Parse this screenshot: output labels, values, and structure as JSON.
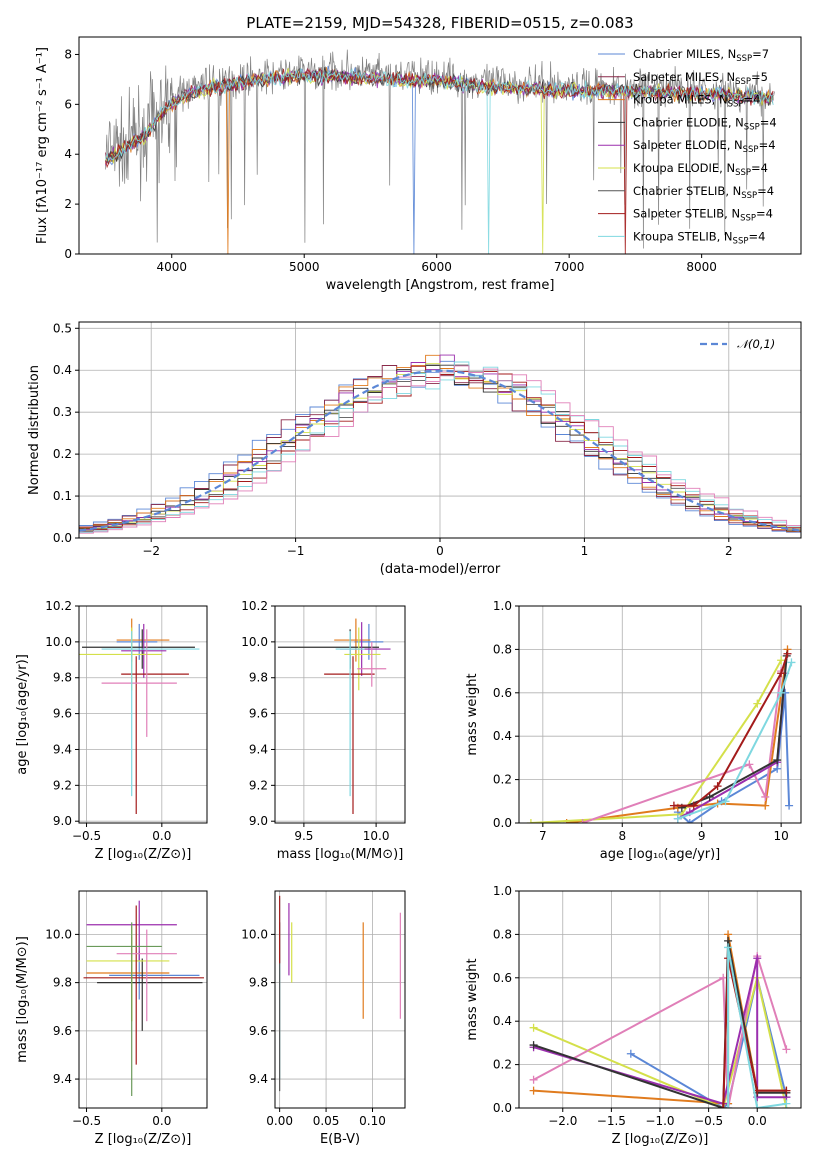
{
  "colors": {
    "Chabrier MILES": "#5b87d6",
    "Salpeter MILES": "#8a2a4a",
    "Kroupa MILES": "#e07b1e",
    "Chabrier ELODIE": "#333333",
    "Salpeter ELODIE": "#9b2fae",
    "Kroupa ELODIE": "#d4e04a",
    "Chabrier STELIB": "#555555",
    "Salpeter STELIB": "#a31b1b",
    "Kroupa STELIB": "#7fd8e0",
    "pink": "#e07fb8",
    "green": "#6a9a5a",
    "data": "#808080"
  },
  "chart_data": [
    {
      "type": "line",
      "title": "PLATE=2159, MJD=54328, FIBERID=0515, z=0.083",
      "xlabel": "wavelength [Angstrom, rest frame]",
      "ylabel": "Flux [fλ10⁻¹⁷ erg cm⁻² s⁻¹ A⁻¹]",
      "xlim": [
        3300,
        8750
      ],
      "ylim": [
        0,
        8.7
      ],
      "xticks": [
        4000,
        5000,
        6000,
        7000,
        8000
      ],
      "yticks": [
        0,
        2,
        4,
        6,
        8
      ],
      "legend_position": "right",
      "legend": [
        {
          "label": "Chabrier MILES, N",
          "sub": "SSP",
          "suffix": "=7"
        },
        {
          "label": "Salpeter MILES, N",
          "sub": "SSP",
          "suffix": "=5"
        },
        {
          "label": "Kroupa MILES, N",
          "sub": "SSP",
          "suffix": "=4"
        },
        {
          "label": "Chabrier ELODIE, N",
          "sub": "SSP",
          "suffix": "=4"
        },
        {
          "label": "Salpeter ELODIE, N",
          "sub": "SSP",
          "suffix": "=4"
        },
        {
          "label": "Kroupa ELODIE, N",
          "sub": "SSP",
          "suffix": "=4"
        },
        {
          "label": "Chabrier STELIB, N",
          "sub": "SSP",
          "suffix": "=4"
        },
        {
          "label": "Salpeter STELIB, N",
          "sub": "SSP",
          "suffix": "=4"
        },
        {
          "label": "Kroupa STELIB, N",
          "sub": "SSP",
          "suffix": "=4"
        }
      ],
      "continuum": {
        "x": [
          3500,
          3600,
          3700,
          3800,
          3900,
          4000,
          4100,
          4200,
          4400,
          4600,
          4800,
          5000,
          5200,
          5500,
          5800,
          6000,
          6300,
          6600,
          7000,
          7400,
          7800,
          8200,
          8500
        ],
        "y": [
          3.9,
          4.2,
          4.6,
          4.9,
          5.6,
          6.2,
          6.5,
          6.7,
          6.9,
          7.1,
          7.2,
          7.3,
          7.3,
          7.2,
          7.1,
          7.1,
          6.9,
          6.8,
          6.7,
          6.7,
          6.6,
          6.5,
          6.4
        ]
      }
    },
    {
      "type": "histogram",
      "xlabel": "(data-model)/error",
      "ylabel": "Normed distribution",
      "xlim": [
        -2.5,
        2.5
      ],
      "ylim": [
        0,
        0.515
      ],
      "xticks": [
        -2,
        -1,
        0,
        1,
        2
      ],
      "yticks": [
        0.0,
        0.1,
        0.2,
        0.3,
        0.4,
        0.5
      ],
      "bin_width": 0.1,
      "legend": "𝒩(0,1)",
      "legend_position": "top-right"
    },
    {
      "type": "errorbar",
      "xlabel": "Z [log₁₀(Z/Z⊙)]",
      "ylabel": "age  [log₁₀(age/yr)]",
      "xlim": [
        -0.55,
        0.3
      ],
      "ylim": [
        8.99,
        10.2
      ],
      "xticks": [
        -0.5,
        0.0
      ],
      "yticks": [
        9.0,
        9.2,
        9.4,
        9.6,
        9.8,
        10.0,
        10.2
      ],
      "points": [
        {
          "x": -0.15,
          "y": 10.0,
          "xerr": [
            0.15,
            0.12
          ],
          "yerr": [
            0.1,
            0.1
          ],
          "c": "#5b87d6"
        },
        {
          "x": -0.2,
          "y": 10.01,
          "xerr": [
            0.1,
            0.25
          ],
          "yerr": [
            0.12,
            0.12
          ],
          "c": "#e07b1e"
        },
        {
          "x": -0.13,
          "y": 9.97,
          "xerr": [
            0.4,
            0.35
          ],
          "yerr": [
            0.12,
            0.1
          ],
          "c": "#333333"
        },
        {
          "x": -0.12,
          "y": 9.95,
          "xerr": [
            0.15,
            0.15
          ],
          "yerr": [
            0.15,
            0.15
          ],
          "c": "#9b2fae"
        },
        {
          "x": -0.2,
          "y": 9.93,
          "xerr": [
            0.35,
            0.2
          ],
          "yerr": [
            0.2,
            0.15
          ],
          "c": "#d4e04a"
        },
        {
          "x": -0.17,
          "y": 9.82,
          "xerr": [
            0.1,
            0.35
          ],
          "yerr": [
            0.78,
            0.1
          ],
          "c": "#a31b1b"
        },
        {
          "x": -0.1,
          "y": 9.77,
          "xerr": [
            0.3,
            0.2
          ],
          "yerr": [
            0.3,
            0.3
          ],
          "c": "#e07fb8"
        },
        {
          "x": -0.2,
          "y": 9.96,
          "xerr": [
            0.2,
            0.45
          ],
          "yerr": [
            0.82,
            0.1
          ],
          "c": "#7fd8e0"
        }
      ]
    },
    {
      "type": "errorbar",
      "xlabel": "mass [log₁₀(M/M⊙)]",
      "ylabel": "",
      "xlim": [
        9.3,
        10.2
      ],
      "ylim": [
        8.99,
        10.2
      ],
      "xticks": [
        9.5,
        10.0
      ],
      "yticks": [
        9.0,
        9.2,
        9.4,
        9.6,
        9.8,
        10.0,
        10.2
      ],
      "points": [
        {
          "x": 9.95,
          "y": 10.0,
          "xerr": [
            0.1,
            0.1
          ],
          "yerr": [
            0.1,
            0.1
          ],
          "c": "#5b87d6"
        },
        {
          "x": 9.86,
          "y": 10.01,
          "xerr": [
            0.15,
            0.1
          ],
          "yerr": [
            0.12,
            0.12
          ],
          "c": "#e07b1e"
        },
        {
          "x": 9.82,
          "y": 9.97,
          "xerr": [
            0.5,
            0.2
          ],
          "yerr": [
            0.12,
            0.1
          ],
          "c": "#333333"
        },
        {
          "x": 9.9,
          "y": 9.96,
          "xerr": [
            0.15,
            0.2
          ],
          "yerr": [
            0.15,
            0.15
          ],
          "c": "#9b2fae"
        },
        {
          "x": 9.88,
          "y": 9.93,
          "xerr": [
            0.1,
            0.15
          ],
          "yerr": [
            0.2,
            0.15
          ],
          "c": "#d4e04a"
        },
        {
          "x": 9.84,
          "y": 9.82,
          "xerr": [
            0.2,
            0.15
          ],
          "yerr": [
            0.78,
            0.1
          ],
          "c": "#a31b1b"
        },
        {
          "x": 9.97,
          "y": 9.85,
          "xerr": [
            0.1,
            0.1
          ],
          "yerr": [
            0.1,
            0.15
          ],
          "c": "#e07fb8"
        },
        {
          "x": 9.82,
          "y": 9.96,
          "xerr": [
            0.1,
            0.1
          ],
          "yerr": [
            0.82,
            0.1
          ],
          "c": "#7fd8e0"
        }
      ]
    },
    {
      "type": "line",
      "xlabel": "age  [log₁₀(age/yr)]",
      "ylabel": "mass weight",
      "xlim": [
        6.7,
        10.25
      ],
      "ylim": [
        0,
        1.0
      ],
      "xticks": [
        7,
        8,
        9,
        10
      ],
      "yticks": [
        0.0,
        0.2,
        0.4,
        0.6,
        0.8,
        1.0
      ],
      "series": [
        {
          "c": "#5b87d6",
          "x": [
            8.7,
            8.85,
            9.25,
            9.95,
            10.05,
            10.1
          ],
          "y": [
            0.05,
            0.0,
            0.1,
            0.25,
            0.6,
            0.08
          ]
        },
        {
          "c": "#e07b1e",
          "x": [
            7.3,
            8.7,
            9.2,
            9.8,
            10.08
          ],
          "y": [
            0.0,
            0.07,
            0.09,
            0.08,
            0.8
          ]
        },
        {
          "c": "#d4e04a",
          "x": [
            6.85,
            8.75,
            9.7,
            10.0
          ],
          "y": [
            0.0,
            0.04,
            0.55,
            0.75
          ]
        },
        {
          "c": "#e07fb8",
          "x": [
            7.5,
            9.6,
            9.8,
            10.0
          ],
          "y": [
            0.0,
            0.27,
            0.12,
            0.7
          ]
        },
        {
          "c": "#9b2fae",
          "x": [
            8.7,
            8.85,
            9.95,
            10.05
          ],
          "y": [
            0.02,
            0.05,
            0.28,
            0.69
          ]
        },
        {
          "c": "#333333",
          "x": [
            8.75,
            9.1,
            9.95,
            10.07
          ],
          "y": [
            0.07,
            0.12,
            0.29,
            0.77
          ]
        },
        {
          "c": "#a31b1b",
          "x": [
            8.65,
            8.9,
            9.2,
            10.0,
            10.08
          ],
          "y": [
            0.08,
            0.08,
            0.17,
            0.69,
            0.78
          ]
        },
        {
          "c": "#7fd8e0",
          "x": [
            8.7,
            9.3,
            10.0,
            10.13
          ],
          "y": [
            0.02,
            0.1,
            0.6,
            0.74
          ]
        }
      ]
    },
    {
      "type": "errorbar",
      "xlabel": "Z [log₁₀(Z/Z⊙)]",
      "ylabel": "mass [log₁₀(M/M⊙)]",
      "xlim": [
        -0.55,
        0.3
      ],
      "ylim": [
        9.28,
        10.18
      ],
      "xticks": [
        -0.5,
        0.0
      ],
      "yticks": [
        9.4,
        9.6,
        9.8,
        10.0
      ],
      "points": [
        {
          "x": -0.15,
          "y": 9.83,
          "xerr": [
            0.2,
            0.4
          ],
          "yerr": [
            0.1,
            0.1
          ],
          "c": "#5b87d6"
        },
        {
          "x": -0.2,
          "y": 9.84,
          "xerr": [
            0.3,
            0.25
          ],
          "yerr": [
            0.2,
            0.15
          ],
          "c": "#e07b1e"
        },
        {
          "x": -0.13,
          "y": 9.8,
          "xerr": [
            0.3,
            0.4
          ],
          "yerr": [
            0.2,
            0.1
          ],
          "c": "#333333"
        },
        {
          "x": -0.15,
          "y": 10.04,
          "xerr": [
            0.35,
            0.25
          ],
          "yerr": [
            0.15,
            0.1
          ],
          "c": "#9b2fae"
        },
        {
          "x": -0.2,
          "y": 9.89,
          "xerr": [
            0.3,
            0.25
          ],
          "yerr": [
            0.25,
            0.15
          ],
          "c": "#d4e04a"
        },
        {
          "x": -0.17,
          "y": 9.82,
          "xerr": [
            0.35,
            0.45
          ],
          "yerr": [
            0.36,
            0.3
          ],
          "c": "#a31b1b"
        },
        {
          "x": -0.1,
          "y": 9.92,
          "xerr": [
            0.2,
            0.2
          ],
          "yerr": [
            0.28,
            0.1
          ],
          "c": "#e07fb8"
        },
        {
          "x": -0.2,
          "y": 9.95,
          "xerr": [
            0.3,
            0.2
          ],
          "yerr": [
            0.62,
            0.1
          ],
          "c": "#6a9a5a"
        }
      ]
    },
    {
      "type": "errorbar",
      "xlabel": "E(B-V)",
      "ylabel": "",
      "xlim": [
        -0.005,
        0.135
      ],
      "ylim": [
        9.28,
        10.18
      ],
      "xticks": [
        0.0,
        0.05,
        0.1
      ],
      "tick_labels": [
        "0.00",
        "0.05",
        "0.10"
      ],
      "yticks": [
        9.4,
        9.6,
        9.8,
        10.0
      ],
      "points": [
        {
          "x": 0.0,
          "y": 10.0,
          "yerr": [
            0.6,
            0.15
          ],
          "c": "#7fd8e0"
        },
        {
          "x": 0.0,
          "y": 9.8,
          "yerr": [
            0.45,
            0.25
          ],
          "c": "#555555"
        },
        {
          "x": 0.0,
          "y": 10.08,
          "yerr": [
            0.2,
            0.08
          ],
          "c": "#a31b1b"
        },
        {
          "x": 0.01,
          "y": 10.03,
          "yerr": [
            0.2,
            0.1
          ],
          "c": "#9b2fae"
        },
        {
          "x": 0.013,
          "y": 9.95,
          "yerr": [
            0.15,
            0.1
          ],
          "c": "#d4e04a"
        },
        {
          "x": 0.09,
          "y": 9.85,
          "yerr": [
            0.2,
            0.2
          ],
          "c": "#e07b1e"
        },
        {
          "x": 0.13,
          "y": 9.87,
          "yerr": [
            0.22,
            0.22
          ],
          "c": "#e07fb8"
        }
      ]
    },
    {
      "type": "line",
      "xlabel": "Z [log₁₀(Z/Z⊙)]",
      "ylabel": "mass weight",
      "xlim": [
        -2.45,
        0.45
      ],
      "ylim": [
        0,
        1.0
      ],
      "xticks": [
        -2.0,
        -1.5,
        -1.0,
        -0.5,
        0.0
      ],
      "yticks": [
        0.0,
        0.2,
        0.4,
        0.6,
        0.8,
        1.0
      ],
      "series": [
        {
          "c": "#5b87d6",
          "x": [
            -1.3,
            -0.35,
            -0.3,
            0.0,
            0.3
          ],
          "y": [
            0.25,
            0.0,
            0.02,
            0.6,
            0.05
          ]
        },
        {
          "c": "#e07b1e",
          "x": [
            -2.3,
            -0.3,
            -0.3,
            0.0,
            0.3
          ],
          "y": [
            0.08,
            0.02,
            0.8,
            0.08,
            0.08
          ]
        },
        {
          "c": "#d4e04a",
          "x": [
            -2.3,
            -0.35,
            0.0,
            0.3
          ],
          "y": [
            0.37,
            0.0,
            0.6,
            0.0
          ]
        },
        {
          "c": "#e07fb8",
          "x": [
            -2.3,
            -0.35,
            -0.3,
            0.0,
            0.3
          ],
          "y": [
            0.13,
            0.6,
            0.0,
            0.7,
            0.27
          ]
        },
        {
          "c": "#9b2fae",
          "x": [
            -2.3,
            -0.35,
            0.0,
            0.0,
            0.3
          ],
          "y": [
            0.28,
            0.02,
            0.69,
            0.05,
            0.05
          ]
        },
        {
          "c": "#333333",
          "x": [
            -2.3,
            -0.35,
            -0.3,
            0.0,
            0.3
          ],
          "y": [
            0.29,
            0.0,
            0.77,
            0.07,
            0.07
          ]
        },
        {
          "c": "#a31b1b",
          "x": [
            -0.35,
            -0.3,
            0.0,
            0.3
          ],
          "y": [
            0.0,
            0.69,
            0.08,
            0.08
          ]
        },
        {
          "c": "#7fd8e0",
          "x": [
            -0.3,
            -0.3,
            0.0,
            0.3
          ],
          "y": [
            0.0,
            0.74,
            0.0,
            0.02
          ]
        }
      ]
    }
  ]
}
